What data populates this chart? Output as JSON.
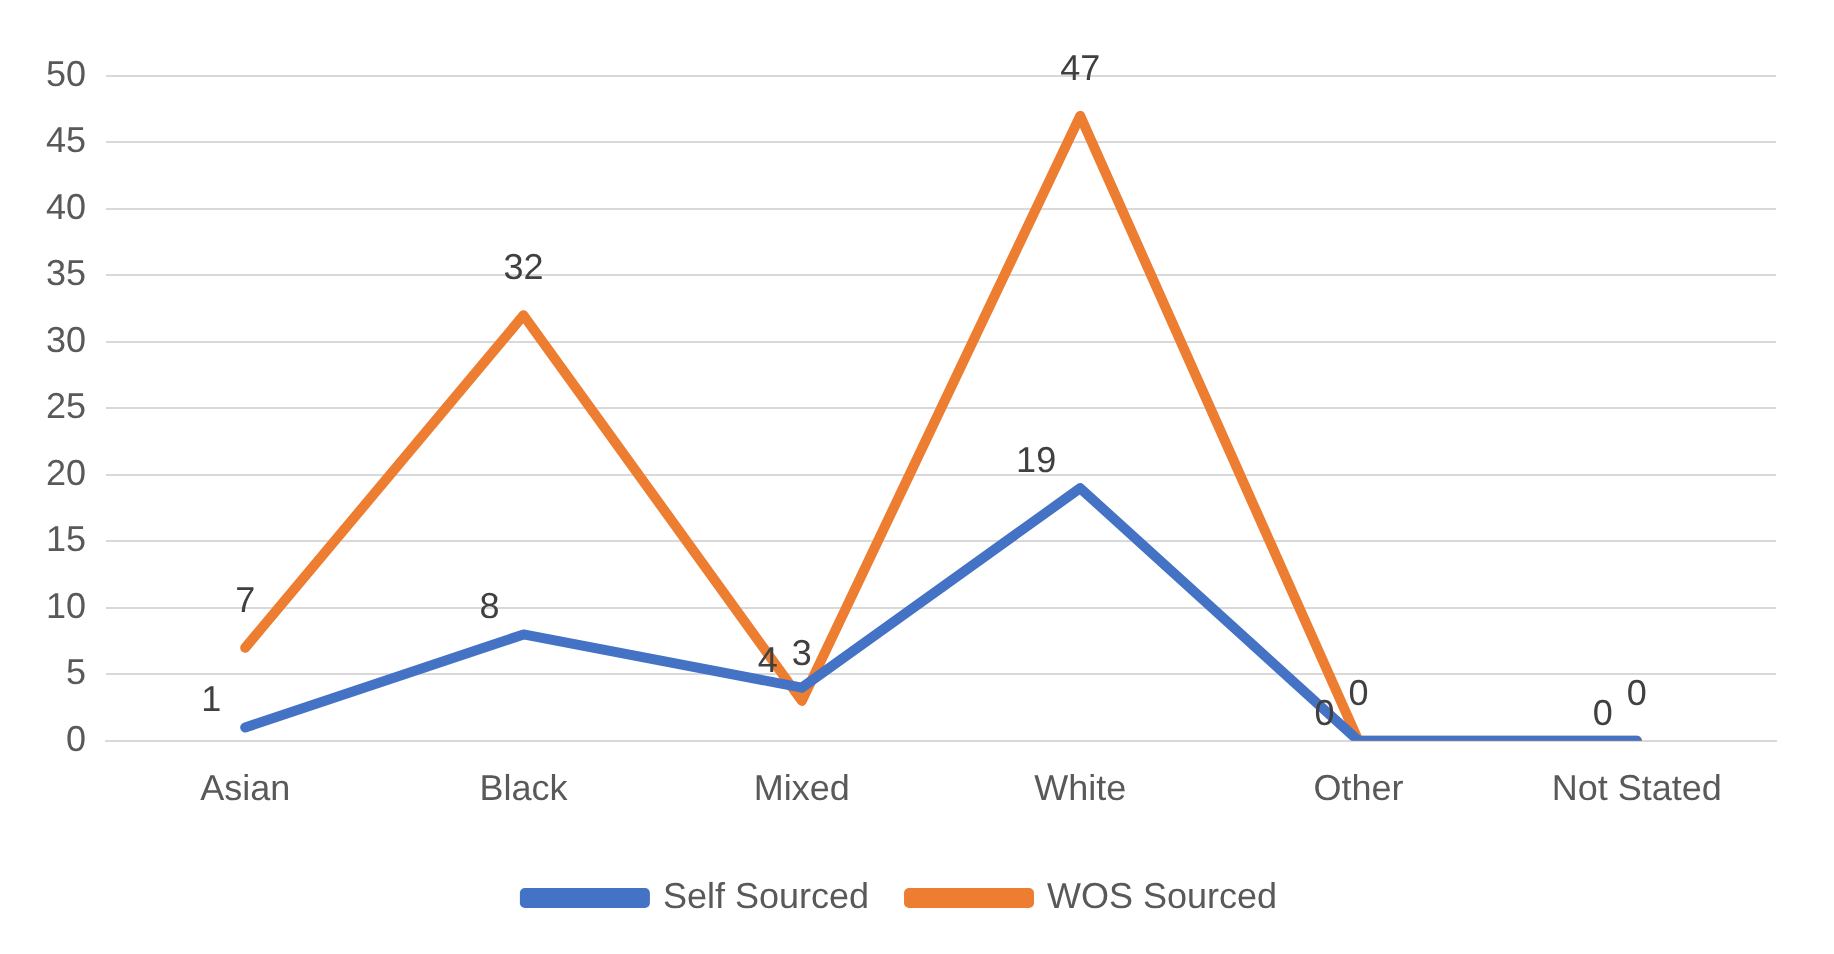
{
  "chart_data": {
    "type": "line",
    "categories": [
      "Asian",
      "Black",
      "Mixed",
      "White",
      "Other",
      "Not Stated"
    ],
    "series": [
      {
        "name": "Self Sourced",
        "color": "#4472c4",
        "values": [
          1,
          8,
          4,
          19,
          0,
          0
        ]
      },
      {
        "name": "WOS Sourced",
        "color": "#ed7d31",
        "values": [
          7,
          32,
          3,
          47,
          0,
          0
        ]
      }
    ],
    "ylim": [
      0,
      50
    ],
    "yticks": [
      0,
      5,
      10,
      15,
      20,
      25,
      30,
      35,
      40,
      45,
      50
    ],
    "grid": "y",
    "legend": "bottom",
    "data_labels": true,
    "marker": "none",
    "line_style": "solid"
  }
}
